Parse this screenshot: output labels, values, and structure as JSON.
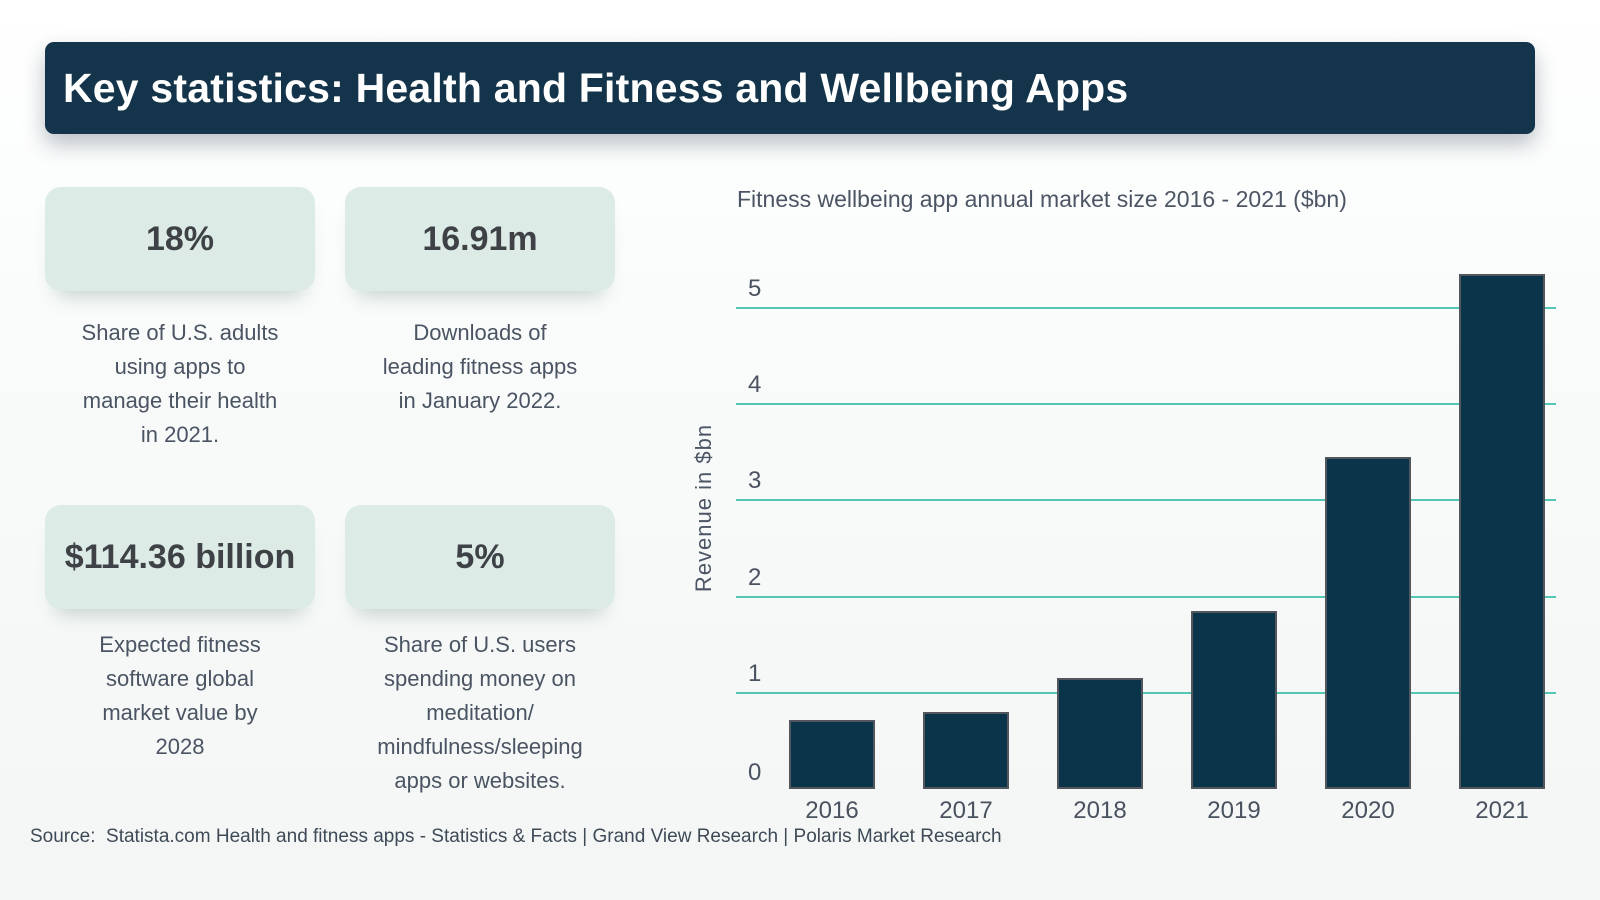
{
  "header": {
    "title": "Key statistics: Health and Fitness and Wellbeing Apps"
  },
  "stats": [
    {
      "value": "18%",
      "description": "Share of U.S. adults\nusing apps to\nmanage their health\nin 2021."
    },
    {
      "value": "16.91m",
      "description": "Downloads of\nleading fitness apps\nin January 2022."
    },
    {
      "value": "$114.36 billion",
      "description": "Expected fitness\nsoftware global\nmarket value by\n2028"
    },
    {
      "value": "5%",
      "description": "Share of U.S. users\nspending money on\nmeditation/\nmindfulness/sleeping\napps or websites."
    }
  ],
  "chart": {
    "title": "Fitness wellbeing app annual market size 2016 - 2021 ($bn)",
    "ylabel": "Revenue in $bn"
  },
  "chart_data": {
    "type": "bar",
    "title": "Fitness wellbeing app annual market size 2016 - 2021 ($bn)",
    "categories": [
      "2016",
      "2017",
      "2018",
      "2019",
      "2020",
      "2021"
    ],
    "values": [
      0.72,
      0.8,
      1.15,
      1.85,
      3.45,
      5.35
    ],
    "xlabel": "",
    "ylabel": "Revenue in $bn",
    "ylim": [
      0,
      5.5
    ],
    "yticks": [
      0,
      1,
      2,
      3,
      4,
      5
    ],
    "grid": true,
    "legend": false,
    "bar_color": "#0a3449",
    "gridline_color": "#53c6b4"
  },
  "source": {
    "text": "Source:  Statista.com Health and fitness apps - Statistics & Facts | Grand View Research | Polaris Market Research"
  },
  "colors": {
    "banner_bg": "#13344a",
    "banner_text": "#ffffff",
    "card_bg": "#dcebe6",
    "card_value": "#3e4246",
    "description_text": "#4a5462",
    "chart_text": "#49525e",
    "gridline": "#53c6b4",
    "bar_fill": "#0a3449",
    "bar_border": "#51575d",
    "page_bg": "#f8fafa"
  }
}
